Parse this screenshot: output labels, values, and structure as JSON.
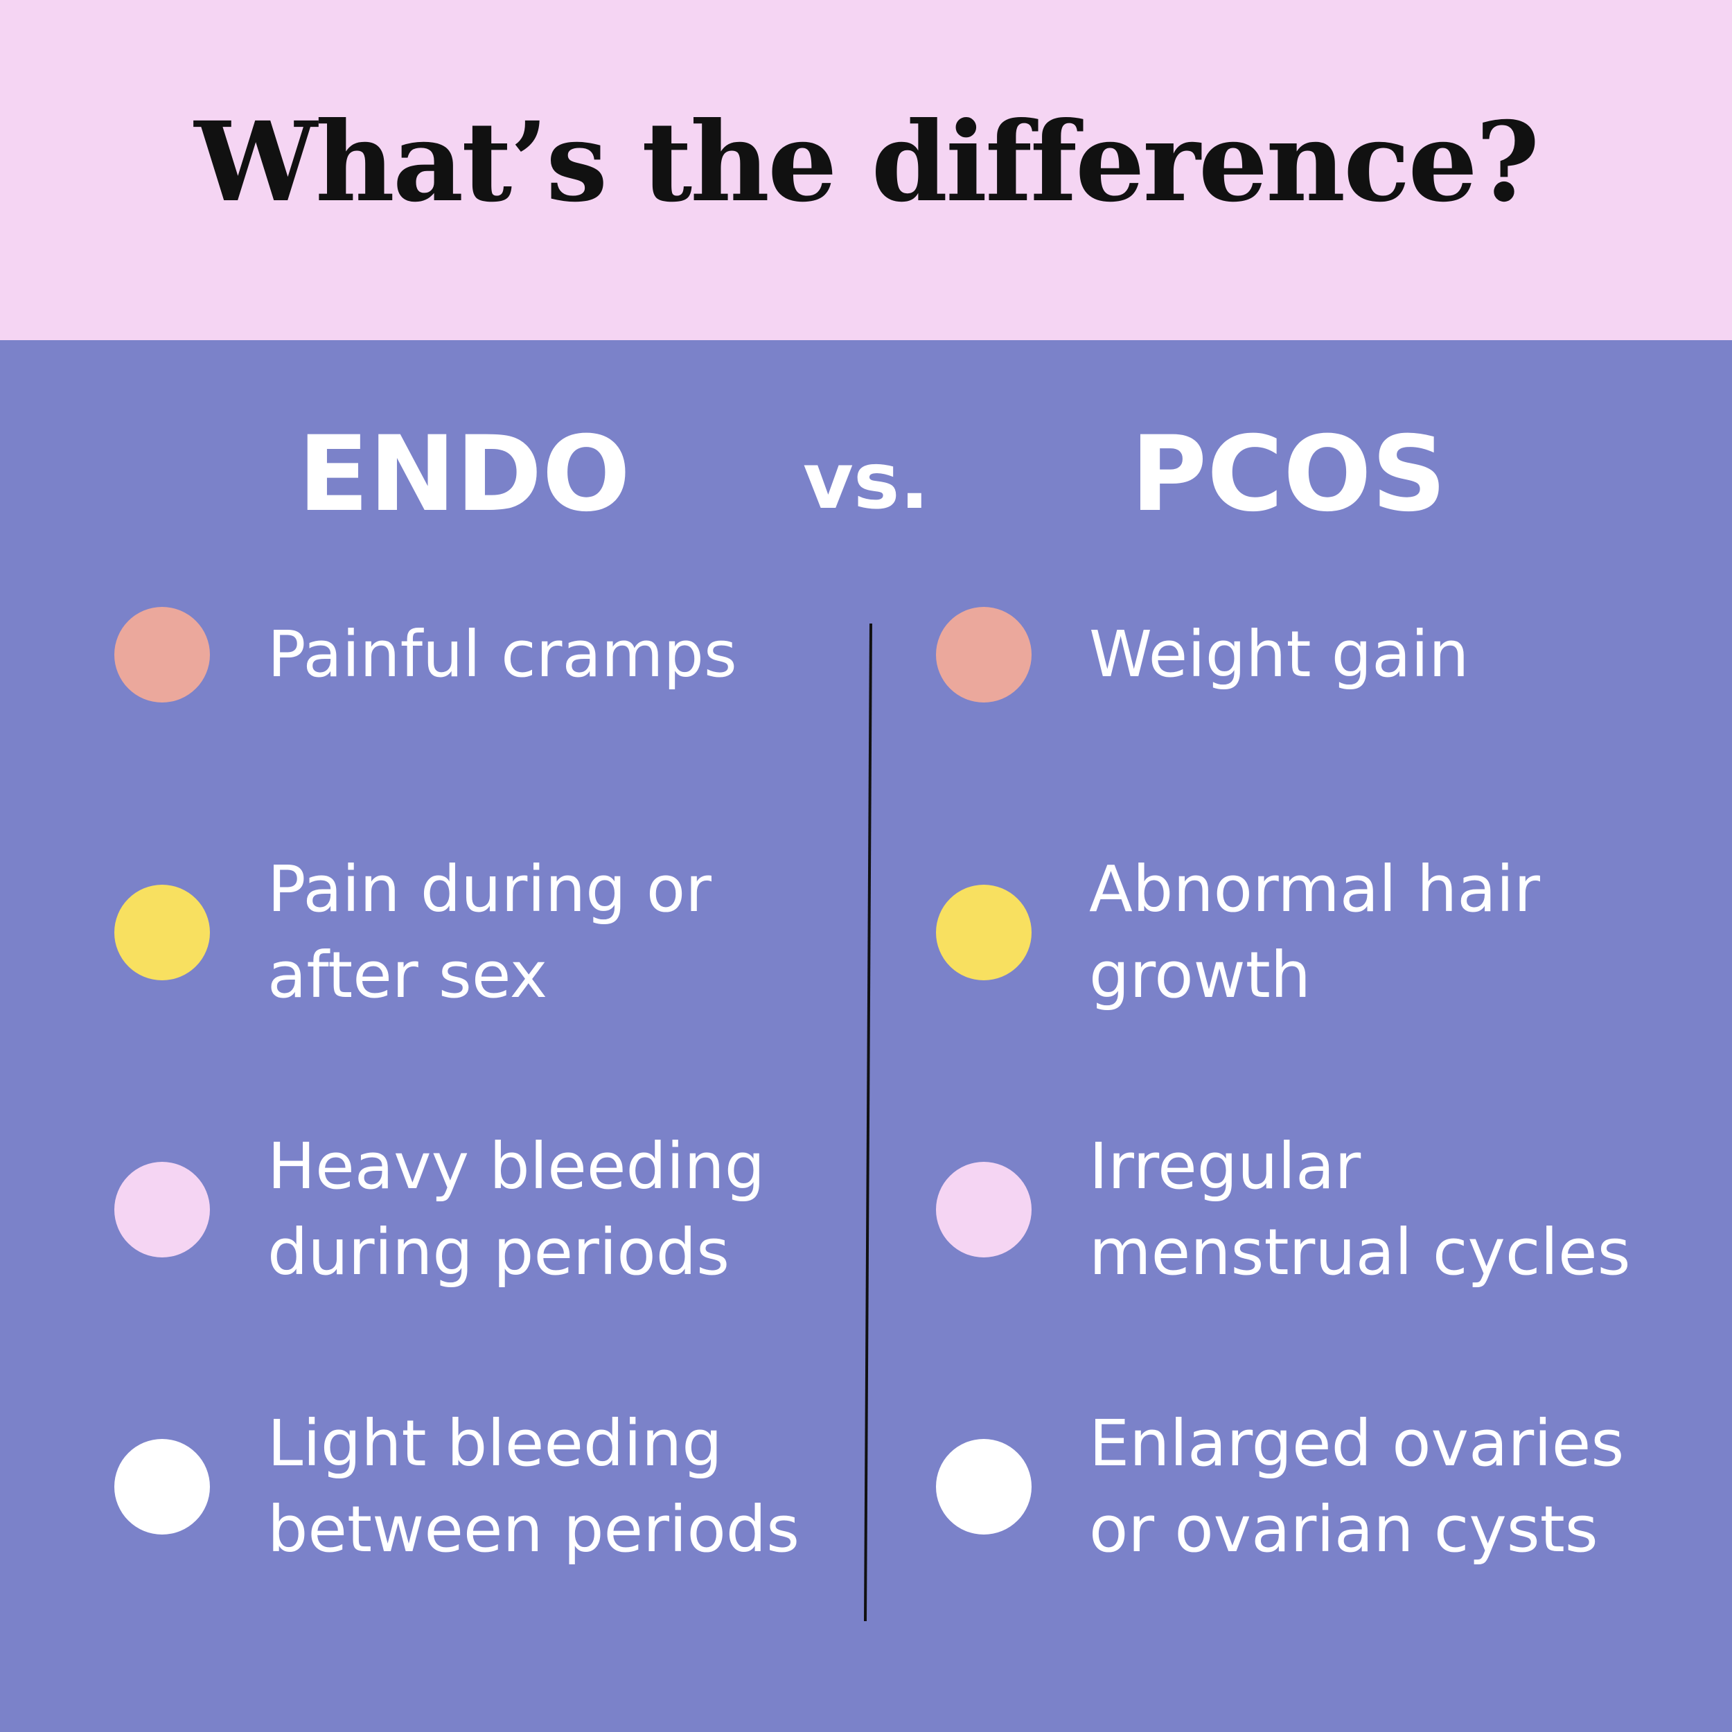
{
  "title": "What’s the difference?",
  "left": {
    "heading": "ENDO",
    "items": [
      {
        "lines": [
          "Painful cramps"
        ]
      },
      {
        "lines": [
          "Pain during or",
          "after sex"
        ]
      },
      {
        "lines": [
          "Heavy bleeding",
          "during periods"
        ]
      },
      {
        "lines": [
          "Light bleeding",
          "between periods"
        ]
      }
    ]
  },
  "versus": "vs.",
  "right": {
    "heading": "PCOS",
    "items": [
      {
        "lines": [
          "Weight gain"
        ]
      },
      {
        "lines": [
          "Abnormal hair",
          "growth"
        ]
      },
      {
        "lines": [
          "Irregular",
          "menstrual cycles"
        ]
      },
      {
        "lines": [
          "Enlarged ovaries",
          "or ovarian cysts"
        ]
      }
    ]
  }
}
